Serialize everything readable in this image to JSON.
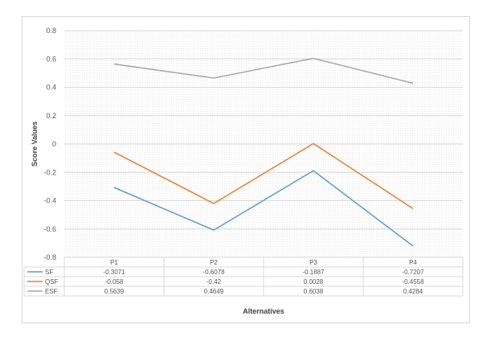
{
  "chart_data": {
    "type": "line",
    "title": "",
    "xlabel": "Alternatives",
    "ylabel": "Score Values",
    "categories": [
      "P1",
      "P2",
      "P3",
      "P4"
    ],
    "ylim": [
      -0.8,
      0.8
    ],
    "yticks": [
      "0.8",
      "0.6",
      "0.4",
      "0.2",
      "0",
      "-0.2",
      "-0.4",
      "-0.6",
      "-0.8"
    ],
    "grid": true,
    "legend": "data-table",
    "series": [
      {
        "name": "SF",
        "color": "#5b9bd5",
        "values": [
          -0.3071,
          -0.6078,
          -0.1887,
          -0.7207
        ],
        "labels": [
          "-0.3071",
          "-0.6078",
          "-0.1887",
          "-0.7207"
        ]
      },
      {
        "name": "QSF",
        "color": "#ed7d31",
        "values": [
          -0.058,
          -0.42,
          0.0028,
          -0.4558
        ],
        "labels": [
          "-0.058",
          "-0.42",
          "0.0028",
          "-0.4558"
        ]
      },
      {
        "name": "ESF",
        "color": "#a5a5a5",
        "values": [
          0.5639,
          0.4649,
          0.6038,
          0.4284
        ],
        "labels": [
          "0.5639",
          "0.4649",
          "0.6038",
          "0.4284"
        ]
      }
    ]
  }
}
